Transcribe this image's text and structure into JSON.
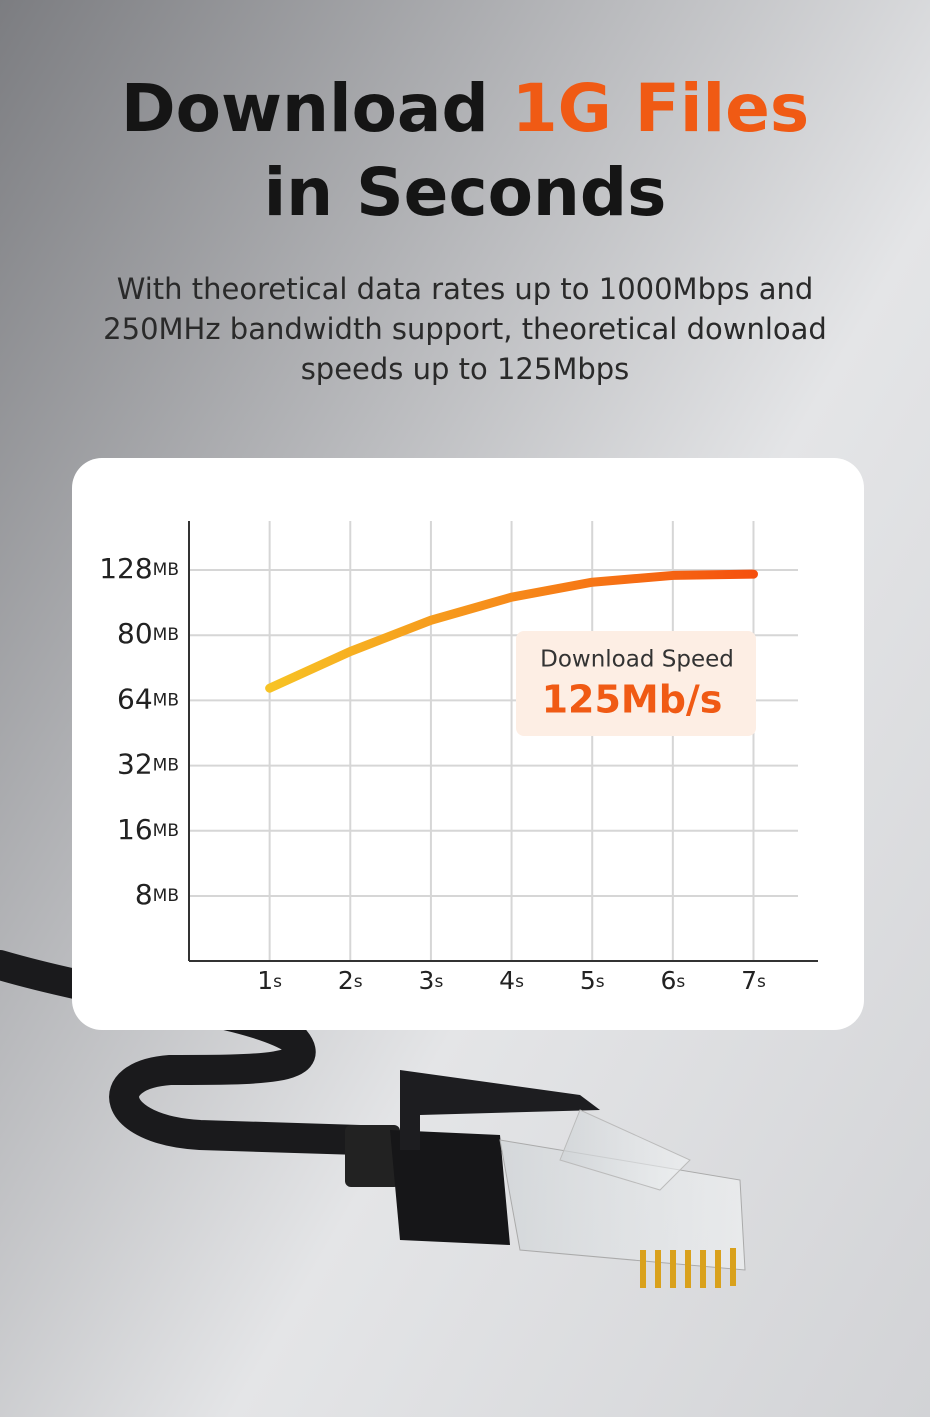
{
  "header": {
    "title_plain": "Download",
    "title_highlight": "1G Files",
    "title_line2": "in Seconds",
    "subtitle": [
      "With theoretical data rates up to 1000Mbps and",
      "250MHz bandwidth support, theoretical download",
      "speeds up to 125Mbps"
    ]
  },
  "chart_data": {
    "type": "line",
    "x": [
      1,
      2,
      3,
      4,
      5,
      6,
      7
    ],
    "xlim": [
      0,
      7.8
    ],
    "xticks": [
      1,
      2,
      3,
      4,
      5,
      6,
      7
    ],
    "x_unit": "s",
    "yticks": [
      8,
      16,
      32,
      64,
      80,
      128
    ],
    "y_unit": "MB",
    "series": [
      {
        "color": "#f5500e",
        "color_start": "#f7c325",
        "values": [
          67,
          76,
          91,
          108,
          119,
          124,
          125
        ]
      }
    ],
    "grid": true,
    "annotation": {
      "label": "Download Speed",
      "value": "125Mb/s"
    }
  }
}
